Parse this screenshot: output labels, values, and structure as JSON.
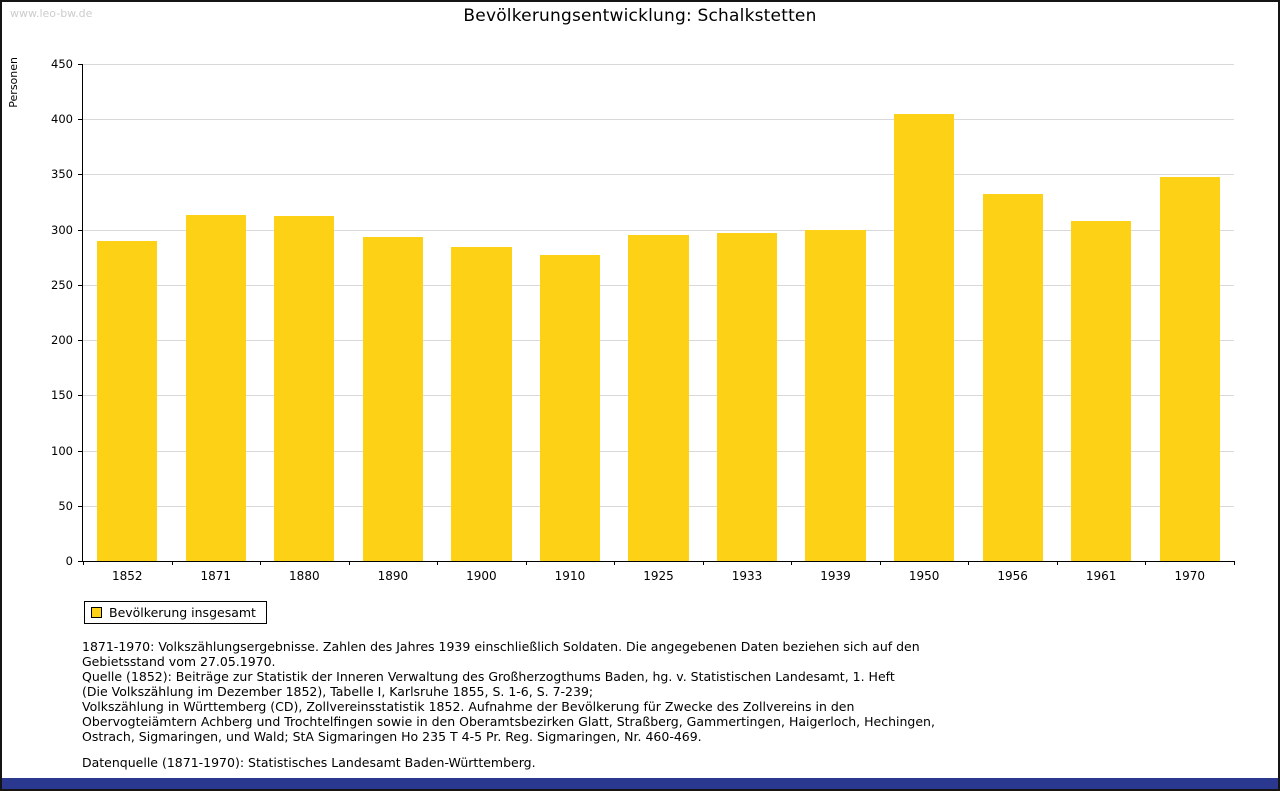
{
  "watermark": "www.leo-bw.de",
  "colors": {
    "bar": "#FCD116",
    "gridline": "#D9D9D9",
    "footer_bar": "#2B3890",
    "watermark": "#CCCCCC"
  },
  "chart_data": {
    "type": "bar",
    "title": "Bevölkerungsentwicklung: Schalkstetten",
    "ylabel": "Personen",
    "xlabel": "",
    "categories": [
      "1852",
      "1871",
      "1880",
      "1890",
      "1900",
      "1910",
      "1925",
      "1933",
      "1939",
      "1950",
      "1956",
      "1961",
      "1970"
    ],
    "values": [
      290,
      313,
      312,
      293,
      284,
      277,
      295,
      297,
      300,
      405,
      332,
      308,
      348
    ],
    "ylim": [
      0,
      450
    ],
    "ytick_step": 50,
    "grid": "horizontal",
    "legend": [
      "Bevölkerung insgesamt"
    ],
    "legend_position": "bottom-left"
  },
  "notes": [
    "1871-1970: Volkszählungsergebnisse. Zahlen des Jahres 1939 einschließlich Soldaten. Die angegebenen Daten beziehen sich auf den",
    "Gebietsstand vom 27.05.1970.",
    "Quelle (1852): Beiträge zur Statistik der Inneren Verwaltung des Großherzogthums Baden, hg. v. Statistischen Landesamt, 1. Heft",
    "(Die Volkszählung im Dezember 1852), Tabelle I, Karlsruhe 1855, S. 1-6, S. 7-239;",
    "Volkszählung in Württemberg (CD), Zollvereinsstatistik 1852. Aufnahme der Bevölkerung für Zwecke des Zollvereins in den",
    "Obervogteiämtern Achberg und Trochtelfingen sowie in den Oberamtsbezirken Glatt, Straßberg, Gammertingen, Haigerloch, Hechingen,",
    "Ostrach, Sigmaringen, und Wald; StA Sigmaringen Ho 235 T 4-5 Pr. Reg. Sigmaringen, Nr. 460-469.",
    "",
    "Datenquelle (1871-1970): Statistisches Landesamt Baden-Württemberg."
  ]
}
